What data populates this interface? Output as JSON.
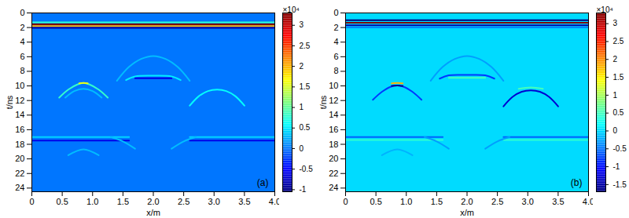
{
  "chart_data": [
    {
      "type": "heatmap",
      "label": "(a)",
      "xlabel": "x/m",
      "ylabel": "t/ns",
      "xlim": [
        0,
        4
      ],
      "ylim": [
        0,
        24.5
      ],
      "xticks": [
        0,
        0.5,
        {
          "value": 1,
          "label": "1.0"
        },
        1.5,
        {
          "value": 2,
          "label": "2.0"
        },
        2.5,
        {
          "value": 3,
          "label": "3.0"
        },
        3.5,
        {
          "value": 4,
          "label": "4.0"
        }
      ],
      "yticks": [
        0,
        2,
        4,
        6,
        8,
        10,
        12,
        14,
        16,
        18,
        20,
        22,
        24
      ],
      "background": 0,
      "clim": [
        -1.05,
        3.3
      ],
      "cticks": [
        -1,
        -0.5,
        0,
        0.5,
        1,
        1.5,
        2,
        2.5,
        3
      ],
      "colorbar_label": "×10⁴",
      "traces": [
        {
          "value": 0.8,
          "x": [
            0,
            4
          ],
          "t": [
            1.3,
            1.3
          ]
        },
        {
          "value": 3.3,
          "x": [
            0,
            4
          ],
          "t": [
            1.55,
            1.55
          ]
        },
        {
          "value": 2.0,
          "x": [
            0,
            4
          ],
          "t": [
            1.8,
            1.8
          ]
        },
        {
          "value": -0.9,
          "x": [
            0,
            4
          ],
          "t": [
            2.05,
            2.05
          ]
        },
        {
          "value": 0.8,
          "x": [
            0.45,
            0.6,
            0.75,
            0.85,
            0.95,
            1.1,
            1.25
          ],
          "t": [
            11.6,
            10.5,
            9.8,
            9.6,
            9.8,
            10.5,
            11.6
          ]
        },
        {
          "value": 1.6,
          "x": [
            0.78,
            0.85,
            0.92
          ],
          "t": [
            9.65,
            9.6,
            9.65
          ]
        },
        {
          "value": 0.3,
          "x": [
            0.55,
            0.7,
            0.85,
            1.0,
            1.15
          ],
          "t": [
            11.6,
            10.7,
            10.4,
            10.7,
            11.6
          ]
        },
        {
          "value": 0.3,
          "x": [
            1.4,
            1.6,
            1.8,
            2.0,
            2.2,
            2.4,
            2.6
          ],
          "t": [
            9.3,
            7.4,
            6.3,
            5.9,
            6.3,
            7.4,
            9.3
          ]
        },
        {
          "value": 0.5,
          "x": [
            1.55,
            1.7,
            2.0,
            2.3,
            2.45
          ],
          "t": [
            9.2,
            8.7,
            8.6,
            8.7,
            9.2
          ]
        },
        {
          "value": -0.6,
          "x": [
            1.7,
            2.3
          ],
          "t": [
            8.95,
            8.95
          ]
        },
        {
          "value": 0.6,
          "x": [
            2.6,
            2.75,
            2.9,
            3.05,
            3.2,
            3.35,
            3.5
          ],
          "t": [
            12.7,
            11.4,
            10.7,
            10.5,
            10.7,
            11.4,
            12.7
          ]
        },
        {
          "value": 0.4,
          "x": [
            0,
            1.6
          ],
          "t": [
            17.0,
            17.0
          ]
        },
        {
          "value": 0.4,
          "x": [
            2.6,
            4.0
          ],
          "t": [
            17.0,
            17.0
          ]
        },
        {
          "value": -0.6,
          "x": [
            0,
            1.6
          ],
          "t": [
            17.5,
            17.5
          ]
        },
        {
          "value": -0.6,
          "x": [
            2.6,
            4.0
          ],
          "t": [
            17.5,
            17.5
          ]
        },
        {
          "value": 0.3,
          "x": [
            1.3,
            1.5,
            1.7
          ],
          "t": [
            17.0,
            17.6,
            18.6
          ]
        },
        {
          "value": 0.3,
          "x": [
            2.3,
            2.5,
            2.7
          ],
          "t": [
            18.6,
            17.6,
            17.0
          ]
        },
        {
          "value": 0.3,
          "x": [
            0.6,
            0.85,
            1.1
          ],
          "t": [
            19.5,
            18.7,
            19.5
          ]
        }
      ]
    },
    {
      "type": "heatmap",
      "label": "(b)",
      "xlabel": "x/m",
      "ylabel": "t/ns",
      "xlim": [
        0,
        4
      ],
      "ylim": [
        0,
        24.5
      ],
      "xticks": [
        0,
        0.5,
        {
          "value": 1,
          "label": "1.0"
        },
        1.5,
        {
          "value": 2,
          "label": "2.0"
        },
        2.5,
        {
          "value": 3,
          "label": "3.0"
        },
        3.5,
        {
          "value": 4,
          "label": "4.0"
        }
      ],
      "yticks": [
        0,
        2,
        4,
        6,
        8,
        10,
        12,
        14,
        16,
        18,
        20,
        22,
        24
      ],
      "background": 0,
      "clim": [
        -1.7,
        3.3
      ],
      "cticks": [
        -1.5,
        -1,
        -0.5,
        0,
        0.5,
        1,
        1.5,
        2,
        2.5,
        3
      ],
      "colorbar_label": "×10⁴",
      "traces": [
        {
          "value": -1.7,
          "x": [
            0,
            4
          ],
          "t": [
            1.0,
            1.0
          ]
        },
        {
          "value": 3.3,
          "x": [
            0,
            4
          ],
          "t": [
            1.35,
            1.35
          ]
        },
        {
          "value": -1.5,
          "x": [
            0,
            4
          ],
          "t": [
            1.7,
            1.7
          ]
        },
        {
          "value": -0.4,
          "x": [
            0,
            4
          ],
          "t": [
            2.0,
            2.0
          ]
        },
        {
          "value": -0.8,
          "x": [
            0.45,
            0.6,
            0.75,
            0.85,
            0.95,
            1.1,
            1.25
          ],
          "t": [
            11.9,
            10.8,
            10.1,
            9.95,
            10.1,
            10.8,
            11.9
          ]
        },
        {
          "value": 1.8,
          "x": [
            0.76,
            0.85,
            0.94
          ],
          "t": [
            9.65,
            9.6,
            9.65
          ]
        },
        {
          "value": -1.6,
          "x": [
            0.76,
            0.85,
            0.94
          ],
          "t": [
            10.0,
            9.95,
            10.0
          ]
        },
        {
          "value": -0.3,
          "x": [
            1.4,
            1.6,
            1.8,
            2.0,
            2.2,
            2.4,
            2.6
          ],
          "t": [
            9.3,
            7.4,
            6.3,
            5.9,
            6.3,
            7.4,
            9.3
          ]
        },
        {
          "value": -0.8,
          "x": [
            1.55,
            1.7,
            2.0,
            2.3,
            2.45
          ],
          "t": [
            9.0,
            8.55,
            8.5,
            8.55,
            9.0
          ]
        },
        {
          "value": 0.5,
          "x": [
            1.7,
            2.3
          ],
          "t": [
            8.9,
            8.9
          ]
        },
        {
          "value": -1.3,
          "x": [
            2.6,
            2.75,
            2.9,
            3.05,
            3.2,
            3.35,
            3.5
          ],
          "t": [
            12.8,
            11.5,
            10.8,
            10.6,
            10.8,
            11.5,
            12.8
          ]
        },
        {
          "value": 0.5,
          "x": [
            2.85,
            3.05,
            3.25
          ],
          "t": [
            10.4,
            10.2,
            10.4
          ]
        },
        {
          "value": -0.6,
          "x": [
            0,
            1.6
          ],
          "t": [
            17.0,
            17.0
          ]
        },
        {
          "value": -0.6,
          "x": [
            2.6,
            4.0
          ],
          "t": [
            17.0,
            17.0
          ]
        },
        {
          "value": 0.4,
          "x": [
            0,
            1.6
          ],
          "t": [
            17.4,
            17.4
          ]
        },
        {
          "value": 0.4,
          "x": [
            2.6,
            4.0
          ],
          "t": [
            17.4,
            17.4
          ]
        },
        {
          "value": -0.3,
          "x": [
            1.3,
            1.5,
            1.7
          ],
          "t": [
            17.0,
            17.6,
            18.6
          ]
        },
        {
          "value": -0.3,
          "x": [
            2.3,
            2.5,
            2.7
          ],
          "t": [
            18.6,
            17.6,
            17.0
          ]
        },
        {
          "value": -0.2,
          "x": [
            0.6,
            0.85,
            1.1
          ],
          "t": [
            19.5,
            18.7,
            19.5
          ]
        }
      ]
    }
  ]
}
